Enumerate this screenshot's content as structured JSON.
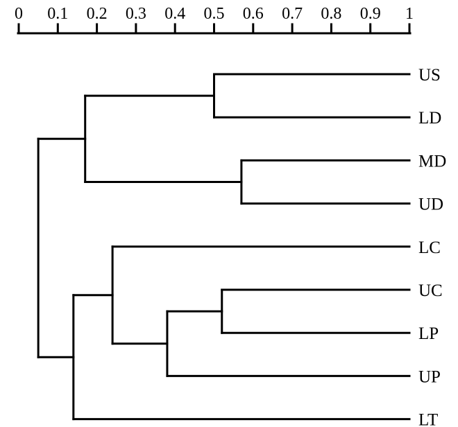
{
  "axis": {
    "min": 0,
    "max": 1,
    "tick_values": [
      0,
      0.1,
      0.2,
      0.3,
      0.4,
      0.5,
      0.6,
      0.7,
      0.8,
      0.9,
      1
    ],
    "tick_labels": [
      "0",
      "0.1",
      "0.2",
      "0.3",
      "0.4",
      "0.5",
      "0.6",
      "0.7",
      "0.8",
      "0.9",
      "1"
    ]
  },
  "dendrogram": {
    "leaves": [
      "US",
      "LD",
      "MD",
      "UD",
      "LC",
      "UC",
      "LP",
      "UP",
      "LT"
    ],
    "merges": [
      {
        "id": "n1",
        "children": [
          "US",
          "LD"
        ],
        "height": 0.5
      },
      {
        "id": "n2",
        "children": [
          "MD",
          "UD"
        ],
        "height": 0.57
      },
      {
        "id": "n3",
        "children": [
          "n1",
          "n2"
        ],
        "height": 0.17
      },
      {
        "id": "n4",
        "children": [
          "UC",
          "LP"
        ],
        "height": 0.52
      },
      {
        "id": "n5",
        "children": [
          "n4",
          "UP"
        ],
        "height": 0.38
      },
      {
        "id": "n6",
        "children": [
          "LC",
          "n5"
        ],
        "height": 0.24
      },
      {
        "id": "n7",
        "children": [
          "n6",
          "LT"
        ],
        "height": 0.14
      },
      {
        "id": "root",
        "children": [
          "n3",
          "n7"
        ],
        "height": 0.05
      }
    ]
  }
}
